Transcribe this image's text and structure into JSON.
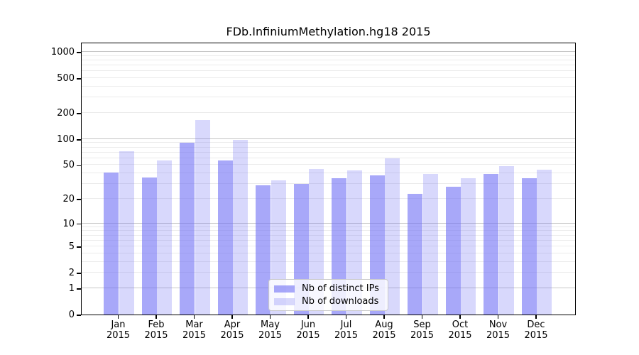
{
  "figure": {
    "background": "#ffffff"
  },
  "chart_data": {
    "type": "bar",
    "title": "FDb.InfiniumMethylation.hg18 2015",
    "categories": [
      "Jan",
      "Feb",
      "Mar",
      "Apr",
      "May",
      "Jun",
      "Jul",
      "Aug",
      "Sep",
      "Oct",
      "Nov",
      "Dec"
    ],
    "year": "2015",
    "series": [
      {
        "name": "Nb of distinct IPs",
        "values": [
          41,
          36,
          90,
          57,
          29,
          30,
          35,
          38,
          23,
          28,
          39,
          35
        ],
        "color": "rgba(110,110,245,0.6)"
      },
      {
        "name": "Nb of downloads",
        "values": [
          73,
          56,
          165,
          98,
          33,
          45,
          43,
          60,
          39,
          35,
          49,
          44
        ],
        "color": "rgba(110,110,245,0.27)"
      }
    ],
    "xlabel": "",
    "ylabel": "",
    "yscale": "log1p",
    "ylim": [
      0,
      1300
    ],
    "yticks": [
      0,
      1,
      2,
      5,
      10,
      20,
      50,
      100,
      200,
      500,
      1000
    ],
    "grid": {
      "major": [
        1,
        10,
        100,
        1000
      ],
      "minor": [
        2,
        3,
        4,
        5,
        6,
        7,
        8,
        9,
        20,
        30,
        40,
        50,
        60,
        70,
        80,
        90,
        200,
        300,
        400,
        500,
        600,
        700,
        800,
        900
      ],
      "major_color": "#c6c6c6",
      "minor_color": "#ebebeb"
    },
    "legend": {
      "position": "bottom-center",
      "entries": [
        "Nb of distinct IPs",
        "Nb of downloads"
      ]
    }
  }
}
